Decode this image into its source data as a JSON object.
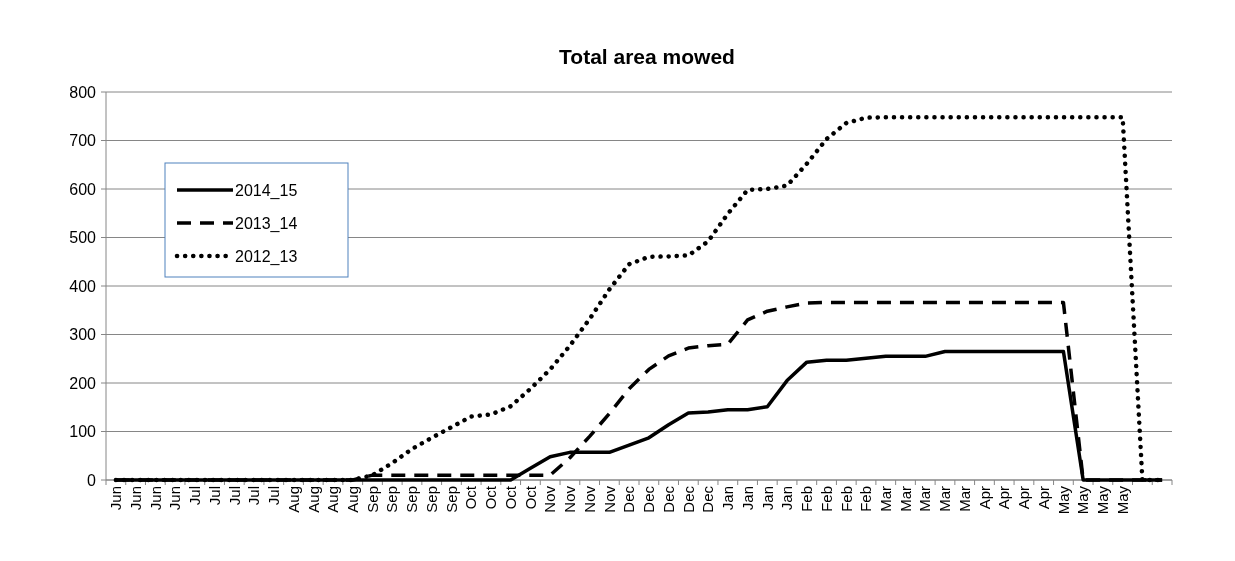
{
  "chart_data": {
    "type": "line",
    "title": "Total area mowed",
    "categories": [
      "Jun",
      "Jun",
      "Jun",
      "Jun",
      "Jul",
      "Jul",
      "Jul",
      "Jul",
      "Jul",
      "Aug",
      "Aug",
      "Aug",
      "Aug",
      "Sep",
      "Sep",
      "Sep",
      "Sep",
      "Sep",
      "Oct",
      "Oct",
      "Oct",
      "Oct",
      "Nov",
      "Nov",
      "Nov",
      "Nov",
      "Dec",
      "Dec",
      "Dec",
      "Dec",
      "Dec",
      "Jan",
      "Jan",
      "Jan",
      "Jan",
      "Feb",
      "Feb",
      "Feb",
      "Feb",
      "Mar",
      "Mar",
      "Mar",
      "Mar",
      "Mar",
      "Apr",
      "Apr",
      "Apr",
      "Apr",
      "May",
      "May",
      "May",
      "May",
      null,
      null
    ],
    "series": [
      {
        "name": "2014_15",
        "color": "#000000",
        "line_style": "solid",
        "values": [
          0,
          0,
          0,
          0,
          0,
          0,
          0,
          0,
          0,
          0,
          0,
          0,
          0,
          0,
          0,
          0,
          0,
          0,
          0,
          0,
          0,
          24,
          48,
          57,
          57,
          57,
          72,
          87,
          114,
          138,
          140,
          145,
          145,
          151,
          205,
          243,
          247,
          247,
          251,
          255,
          255,
          255,
          265,
          265,
          265,
          265,
          265,
          265,
          265,
          0,
          0,
          0,
          0,
          0
        ]
      },
      {
        "name": "2013_14",
        "color": "#000000",
        "line_style": "dashed",
        "values": [
          0,
          0,
          0,
          0,
          0,
          0,
          0,
          0,
          0,
          0,
          0,
          0,
          0,
          10,
          10,
          10,
          10,
          10,
          10,
          10,
          10,
          10,
          10,
          46,
          90,
          137,
          188,
          228,
          256,
          272,
          277,
          280,
          330,
          348,
          357,
          365,
          366,
          366,
          366,
          366,
          366,
          366,
          366,
          366,
          366,
          366,
          366,
          366,
          366,
          0,
          0,
          0,
          0,
          0
        ]
      },
      {
        "name": "2012_13",
        "color": "#000000",
        "line_style": "dotted",
        "values": [
          0,
          0,
          0,
          0,
          0,
          0,
          0,
          0,
          0,
          0,
          0,
          0,
          0,
          10,
          35,
          64,
          87,
          109,
          131,
          135,
          152,
          188,
          228,
          277,
          332,
          393,
          445,
          460,
          461,
          463,
          492,
          549,
          598,
          600,
          607,
          652,
          703,
          736,
          747,
          748,
          748,
          748,
          748,
          748,
          748,
          748,
          748,
          748,
          748,
          748,
          748,
          748,
          0,
          0
        ]
      }
    ],
    "ylim": [
      0,
      800
    ],
    "yticks": [
      0,
      100,
      200,
      300,
      400,
      500,
      600,
      700,
      800
    ],
    "grid": "y",
    "legend": "top left",
    "marker": "none"
  }
}
